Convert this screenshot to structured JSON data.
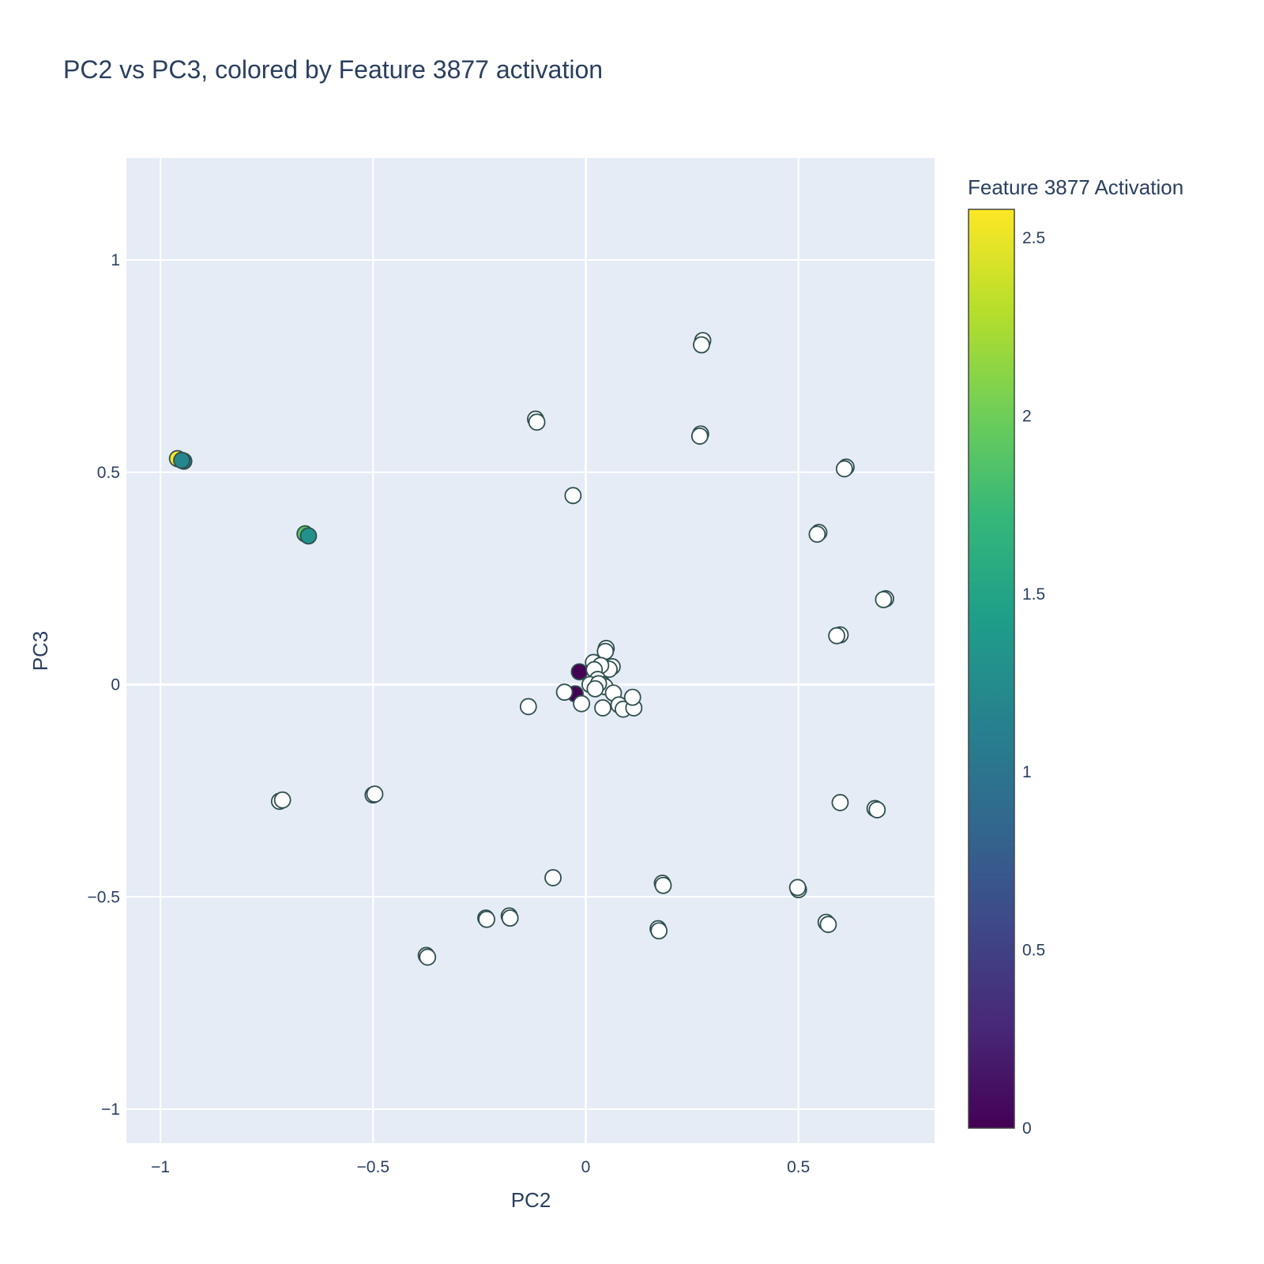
{
  "chart_data": {
    "type": "scatter",
    "title": "PC2 vs PC3, colored by Feature 3877 activation",
    "xlabel": "PC2",
    "ylabel": "PC3",
    "xlim": [
      -1.08,
      0.82
    ],
    "ylim": [
      -1.08,
      1.24
    ],
    "x_ticks": [
      -1,
      -0.5,
      0,
      0.5
    ],
    "x_tick_labels": [
      "−1",
      "−0.5",
      "0",
      "0.5"
    ],
    "y_ticks": [
      -1,
      -0.5,
      0,
      0.5,
      1
    ],
    "y_tick_labels": [
      "−1",
      "−0.5",
      "0",
      "0.5",
      "1"
    ],
    "grid": true,
    "colorscale": "viridis",
    "colorbar": {
      "title": "Feature 3877 Activation",
      "range": [
        0,
        2.58
      ],
      "ticks": [
        0,
        0.5,
        1,
        1.5,
        2,
        2.5
      ],
      "tick_labels": [
        "0",
        "0.5",
        "1",
        "1.5",
        "2",
        "2.5"
      ]
    },
    "colors": {
      "plot_bg": "#e5ecf6",
      "grid": "#ffffff",
      "marker_outline": "#2f4f4f",
      "zero_activation": "#ffffff",
      "text": "#2a3f5f"
    },
    "points": [
      {
        "x": 0.275,
        "y": 0.81,
        "v": 0
      },
      {
        "x": 0.272,
        "y": 0.8,
        "v": 0
      },
      {
        "x": -0.118,
        "y": 0.625,
        "v": 0
      },
      {
        "x": -0.115,
        "y": 0.618,
        "v": 0
      },
      {
        "x": 0.27,
        "y": 0.59,
        "v": 0
      },
      {
        "x": 0.268,
        "y": 0.585,
        "v": 0
      },
      {
        "x": -0.96,
        "y": 0.532,
        "v": 2.58
      },
      {
        "x": -0.945,
        "y": 0.526,
        "v": 0.95
      },
      {
        "x": -0.95,
        "y": 0.528,
        "v": 1.2
      },
      {
        "x": -0.03,
        "y": 0.445,
        "v": 0
      },
      {
        "x": 0.612,
        "y": 0.512,
        "v": 0
      },
      {
        "x": 0.608,
        "y": 0.508,
        "v": 0
      },
      {
        "x": -0.66,
        "y": 0.355,
        "v": 1.9
      },
      {
        "x": -0.652,
        "y": 0.35,
        "v": 1.3
      },
      {
        "x": 0.548,
        "y": 0.358,
        "v": 0
      },
      {
        "x": 0.544,
        "y": 0.354,
        "v": 0
      },
      {
        "x": 0.705,
        "y": 0.202,
        "v": 0
      },
      {
        "x": 0.7,
        "y": 0.2,
        "v": 0
      },
      {
        "x": 0.598,
        "y": 0.117,
        "v": 0
      },
      {
        "x": 0.59,
        "y": 0.115,
        "v": 0
      },
      {
        "x": 0.048,
        "y": 0.085,
        "v": 0
      },
      {
        "x": 0.046,
        "y": 0.078,
        "v": 0
      },
      {
        "x": 0.018,
        "y": 0.052,
        "v": 0
      },
      {
        "x": 0.062,
        "y": 0.042,
        "v": 0
      },
      {
        "x": 0.055,
        "y": 0.036,
        "v": 0
      },
      {
        "x": 0.035,
        "y": 0.045,
        "v": 0
      },
      {
        "x": -0.015,
        "y": 0.03,
        "v": 0.02
      },
      {
        "x": 0.02,
        "y": 0.035,
        "v": 0
      },
      {
        "x": 0.028,
        "y": 0.012,
        "v": 0
      },
      {
        "x": 0.01,
        "y": 0.0,
        "v": 0
      },
      {
        "x": 0.04,
        "y": 0.0,
        "v": 0
      },
      {
        "x": 0.045,
        "y": -0.005,
        "v": 0
      },
      {
        "x": 0.03,
        "y": 0.002,
        "v": 0
      },
      {
        "x": 0.022,
        "y": -0.01,
        "v": 0
      },
      {
        "x": -0.025,
        "y": -0.022,
        "v": 0.02
      },
      {
        "x": -0.05,
        "y": -0.018,
        "v": 0
      },
      {
        "x": 0.065,
        "y": -0.02,
        "v": 0
      },
      {
        "x": -0.01,
        "y": -0.045,
        "v": 0
      },
      {
        "x": 0.04,
        "y": -0.055,
        "v": 0
      },
      {
        "x": 0.078,
        "y": -0.048,
        "v": 0
      },
      {
        "x": 0.088,
        "y": -0.058,
        "v": 0
      },
      {
        "x": 0.113,
        "y": -0.055,
        "v": 0
      },
      {
        "x": 0.11,
        "y": -0.03,
        "v": 0
      },
      {
        "x": -0.135,
        "y": -0.052,
        "v": 0
      },
      {
        "x": -0.72,
        "y": -0.275,
        "v": 0
      },
      {
        "x": -0.713,
        "y": -0.272,
        "v": 0
      },
      {
        "x": -0.5,
        "y": -0.26,
        "v": 0
      },
      {
        "x": -0.496,
        "y": -0.258,
        "v": 0
      },
      {
        "x": 0.598,
        "y": -0.278,
        "v": 0
      },
      {
        "x": 0.68,
        "y": -0.292,
        "v": 0
      },
      {
        "x": 0.685,
        "y": -0.295,
        "v": 0
      },
      {
        "x": -0.077,
        "y": -0.455,
        "v": 0
      },
      {
        "x": 0.18,
        "y": -0.468,
        "v": 0
      },
      {
        "x": 0.182,
        "y": -0.473,
        "v": 0
      },
      {
        "x": 0.5,
        "y": -0.483,
        "v": 0
      },
      {
        "x": 0.498,
        "y": -0.478,
        "v": 0
      },
      {
        "x": -0.18,
        "y": -0.545,
        "v": 0
      },
      {
        "x": -0.178,
        "y": -0.55,
        "v": 0
      },
      {
        "x": -0.235,
        "y": -0.55,
        "v": 0
      },
      {
        "x": -0.233,
        "y": -0.553,
        "v": 0
      },
      {
        "x": 0.565,
        "y": -0.56,
        "v": 0
      },
      {
        "x": 0.57,
        "y": -0.565,
        "v": 0
      },
      {
        "x": 0.17,
        "y": -0.575,
        "v": 0
      },
      {
        "x": 0.172,
        "y": -0.58,
        "v": 0
      },
      {
        "x": -0.375,
        "y": -0.638,
        "v": 0
      },
      {
        "x": -0.372,
        "y": -0.642,
        "v": 0
      }
    ]
  }
}
